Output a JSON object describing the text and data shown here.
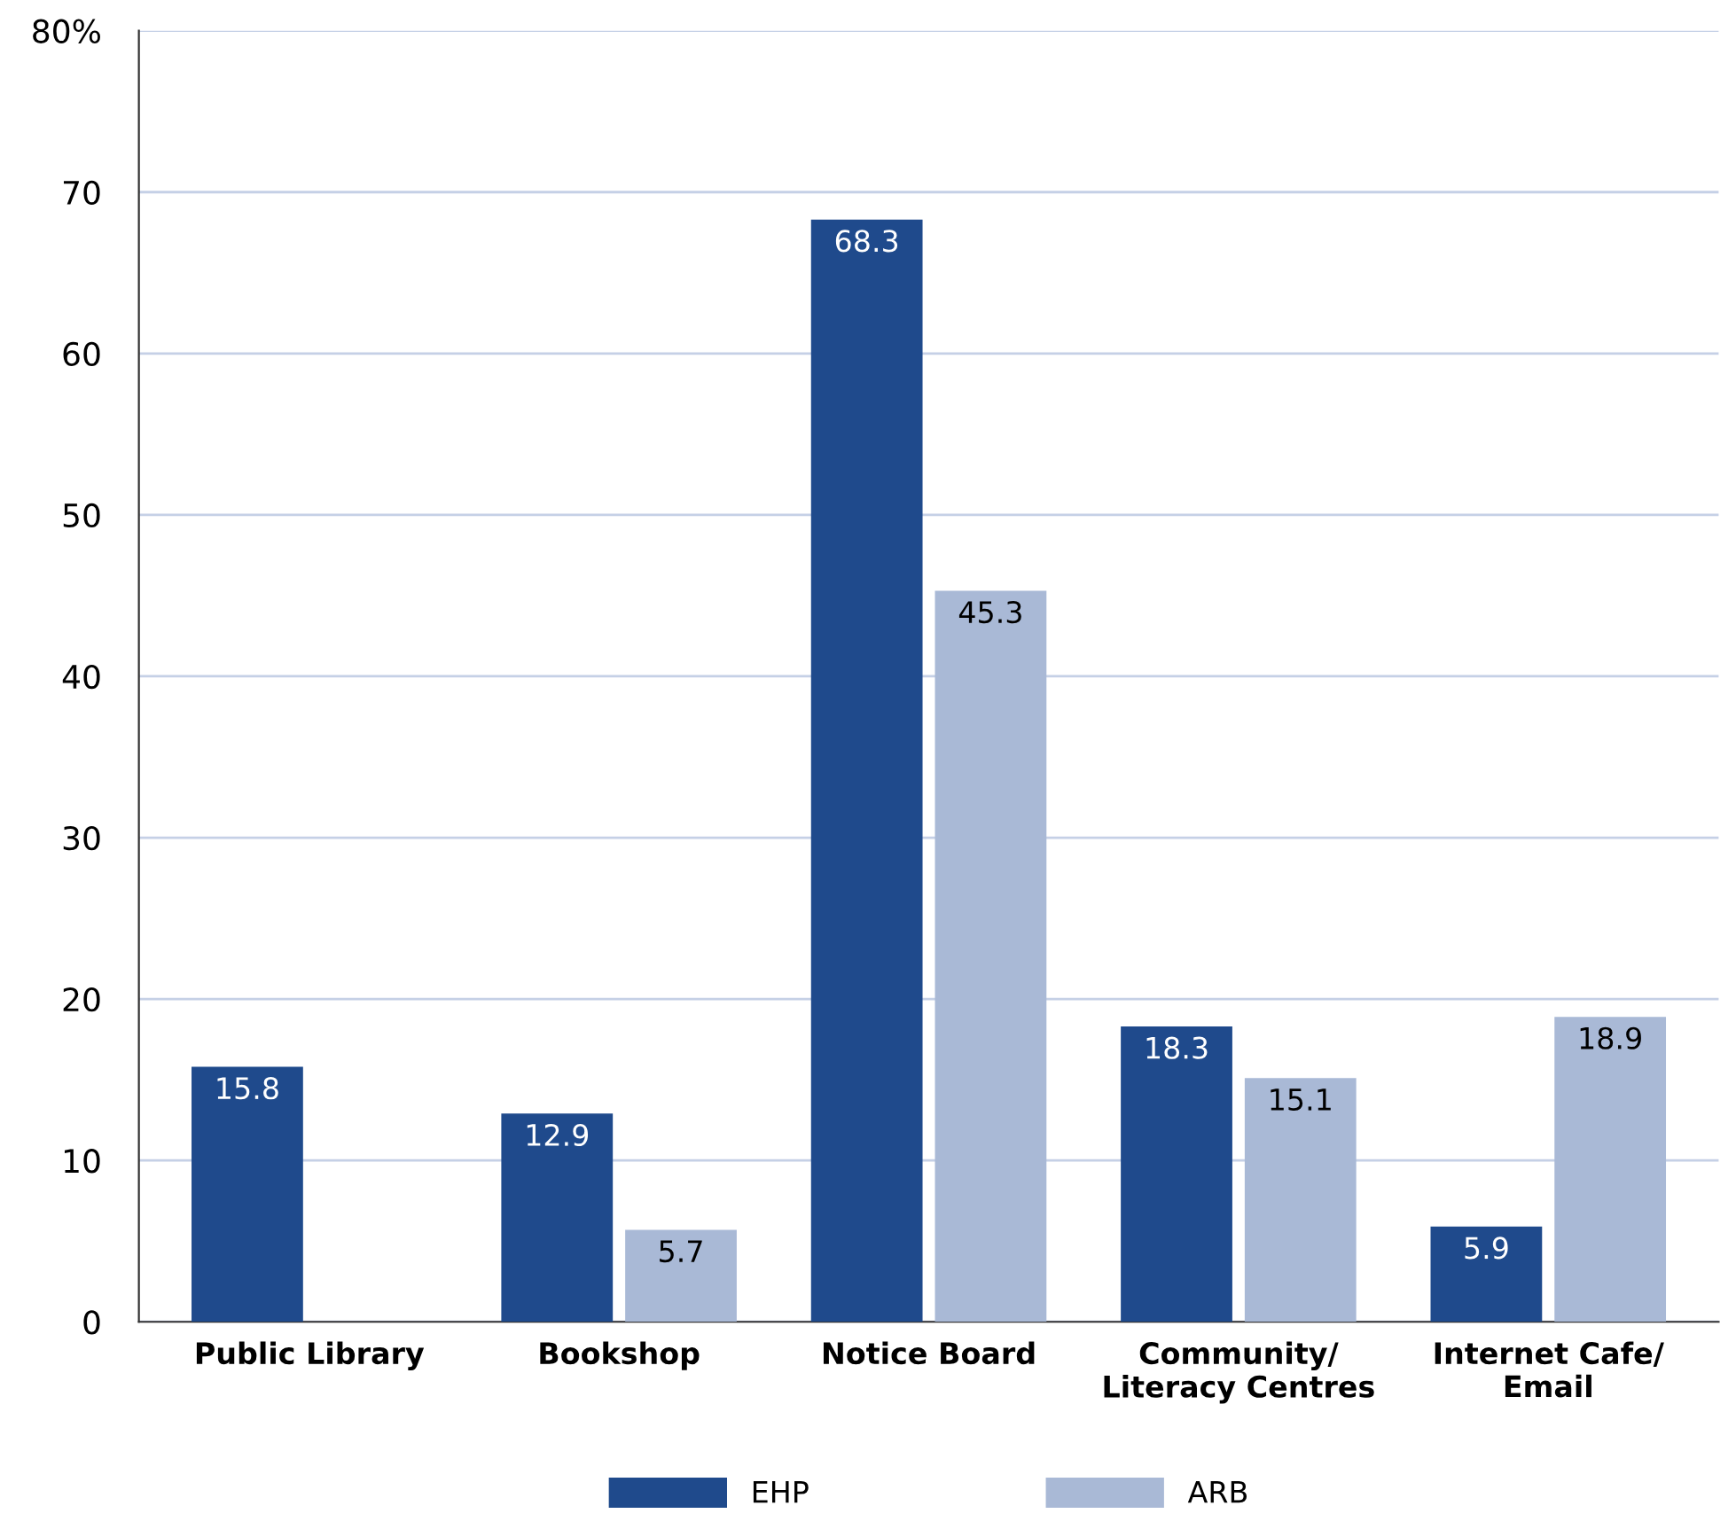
{
  "chart_data": {
    "type": "bar",
    "categories": [
      "Public Library",
      "Bookshop",
      "Notice Board",
      "Community/\nLiteracy Centres",
      "Internet Cafe/\nEmail"
    ],
    "series": [
      {
        "name": "EHP",
        "color": "#1f4a8c",
        "values": [
          15.8,
          12.9,
          68.3,
          18.3,
          5.9
        ]
      },
      {
        "name": "ARB",
        "color": "#a9b9d6",
        "values": [
          null,
          5.7,
          45.3,
          15.1,
          18.9
        ]
      }
    ],
    "ylim": [
      0,
      80
    ],
    "yticks": [
      0,
      10,
      20,
      30,
      40,
      50,
      60,
      70,
      {
        "value": 80,
        "label": "80%"
      }
    ],
    "grid": "y",
    "legend": "bottom",
    "data_labels": true
  }
}
